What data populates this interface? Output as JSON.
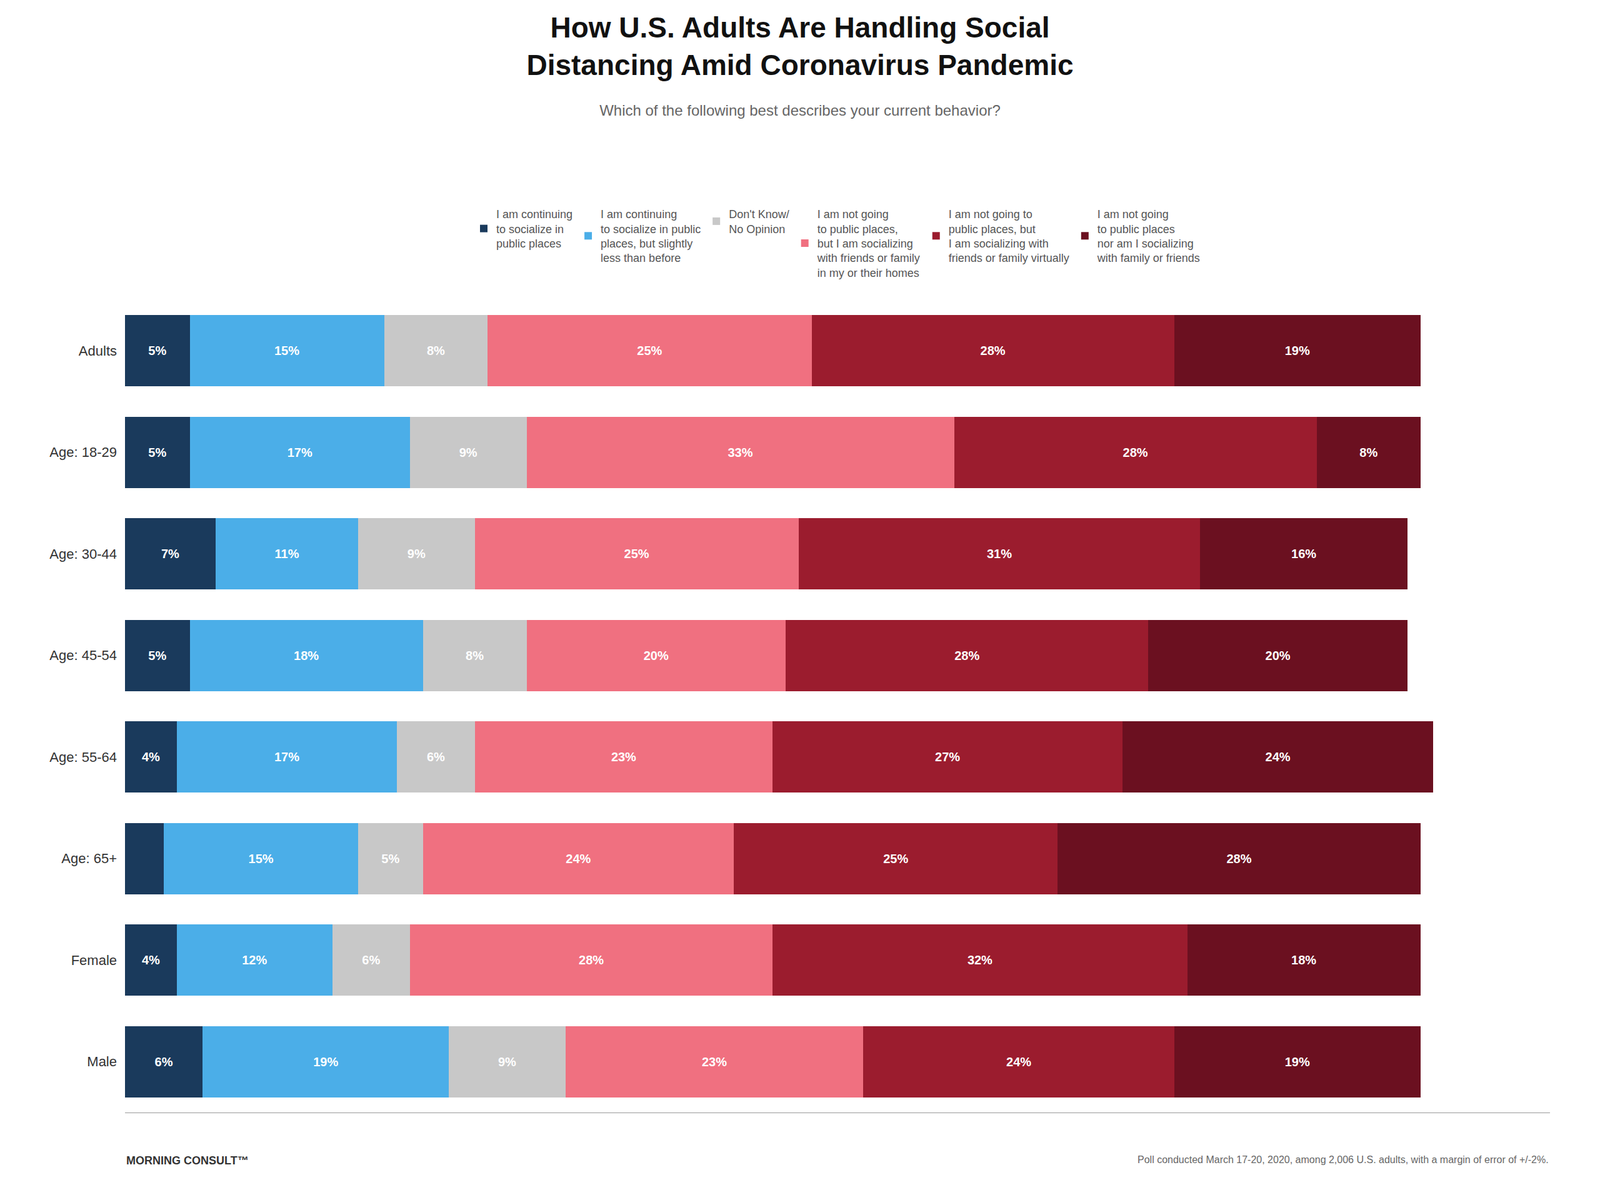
{
  "chart_data": {
    "type": "bar",
    "orientation": "horizontal",
    "stacked": true,
    "title": "How U.S. Adults Are Handling Social\nDistancing Amid Coronavirus Pandemic",
    "subtitle": "Which of the following best describes your current behavior?",
    "annotations": [
      "MORNING CONSULT™",
      "Poll conducted March 17-20, 2020, among 2,006 U.S. adults, with a margin of error of +/-2%."
    ],
    "categories": [
      "Adults",
      "Age: 18-29",
      "Age: 30-44",
      "Age: 45-54",
      "Age: 55-64",
      "Age: 65+",
      "Female",
      "Male"
    ],
    "series": [
      {
        "name": "I am continuing\nto socialize in\npublic places",
        "color": "#1a3a5c",
        "values": [
          5,
          5,
          7,
          5,
          4,
          3,
          4,
          6
        ],
        "value_labels": [
          "5%",
          "5%",
          "7%",
          "5%",
          "4%",
          null,
          "4%",
          "6%"
        ]
      },
      {
        "name": "I am continuing\nto socialize in public\nplaces, but slightly\nless than before",
        "color": "#4baee8",
        "values": [
          15,
          17,
          11,
          18,
          17,
          15,
          12,
          19
        ],
        "value_labels": [
          "15%",
          "17%",
          "11%",
          "18%",
          "17%",
          "15%",
          "12%",
          "19%"
        ]
      },
      {
        "name": "Don't Know/\nNo Opinion",
        "color": "#c8c8c8",
        "values": [
          8,
          9,
          9,
          8,
          6,
          5,
          6,
          9
        ],
        "value_labels": [
          "8%",
          "9%",
          "9%",
          "8%",
          "6%",
          "5%",
          "6%",
          "9%"
        ]
      },
      {
        "name": "I am not going\nto public places,\nbut I am socializing\nwith friends or family\nin my or their homes",
        "color": "#f07080",
        "values": [
          25,
          33,
          25,
          20,
          23,
          24,
          28,
          23
        ],
        "value_labels": [
          "25%",
          "33%",
          "25%",
          "20%",
          "23%",
          "24%",
          "28%",
          "23%"
        ]
      },
      {
        "name": "I am not going to\npublic places, but\nI am socializing with\nfriends or family virtually",
        "color": "#9b1c2e",
        "values": [
          28,
          28,
          31,
          28,
          27,
          25,
          32,
          24
        ],
        "value_labels": [
          "28%",
          "28%",
          "31%",
          "28%",
          "27%",
          "25%",
          "32%",
          "24%"
        ]
      },
      {
        "name": "I am not going\nto public places\nnor am I socializing\nwith family or friends",
        "color": "#6b1020",
        "values": [
          19,
          8,
          16,
          20,
          24,
          28,
          18,
          19
        ],
        "value_labels": [
          "19%",
          "8%",
          "16%",
          "20%",
          "24%",
          "28%",
          "18%",
          "19%"
        ]
      }
    ],
    "xlim": [
      0,
      110
    ],
    "tick_labels": "y",
    "grid": false,
    "data_labels": true,
    "legend": "top"
  }
}
